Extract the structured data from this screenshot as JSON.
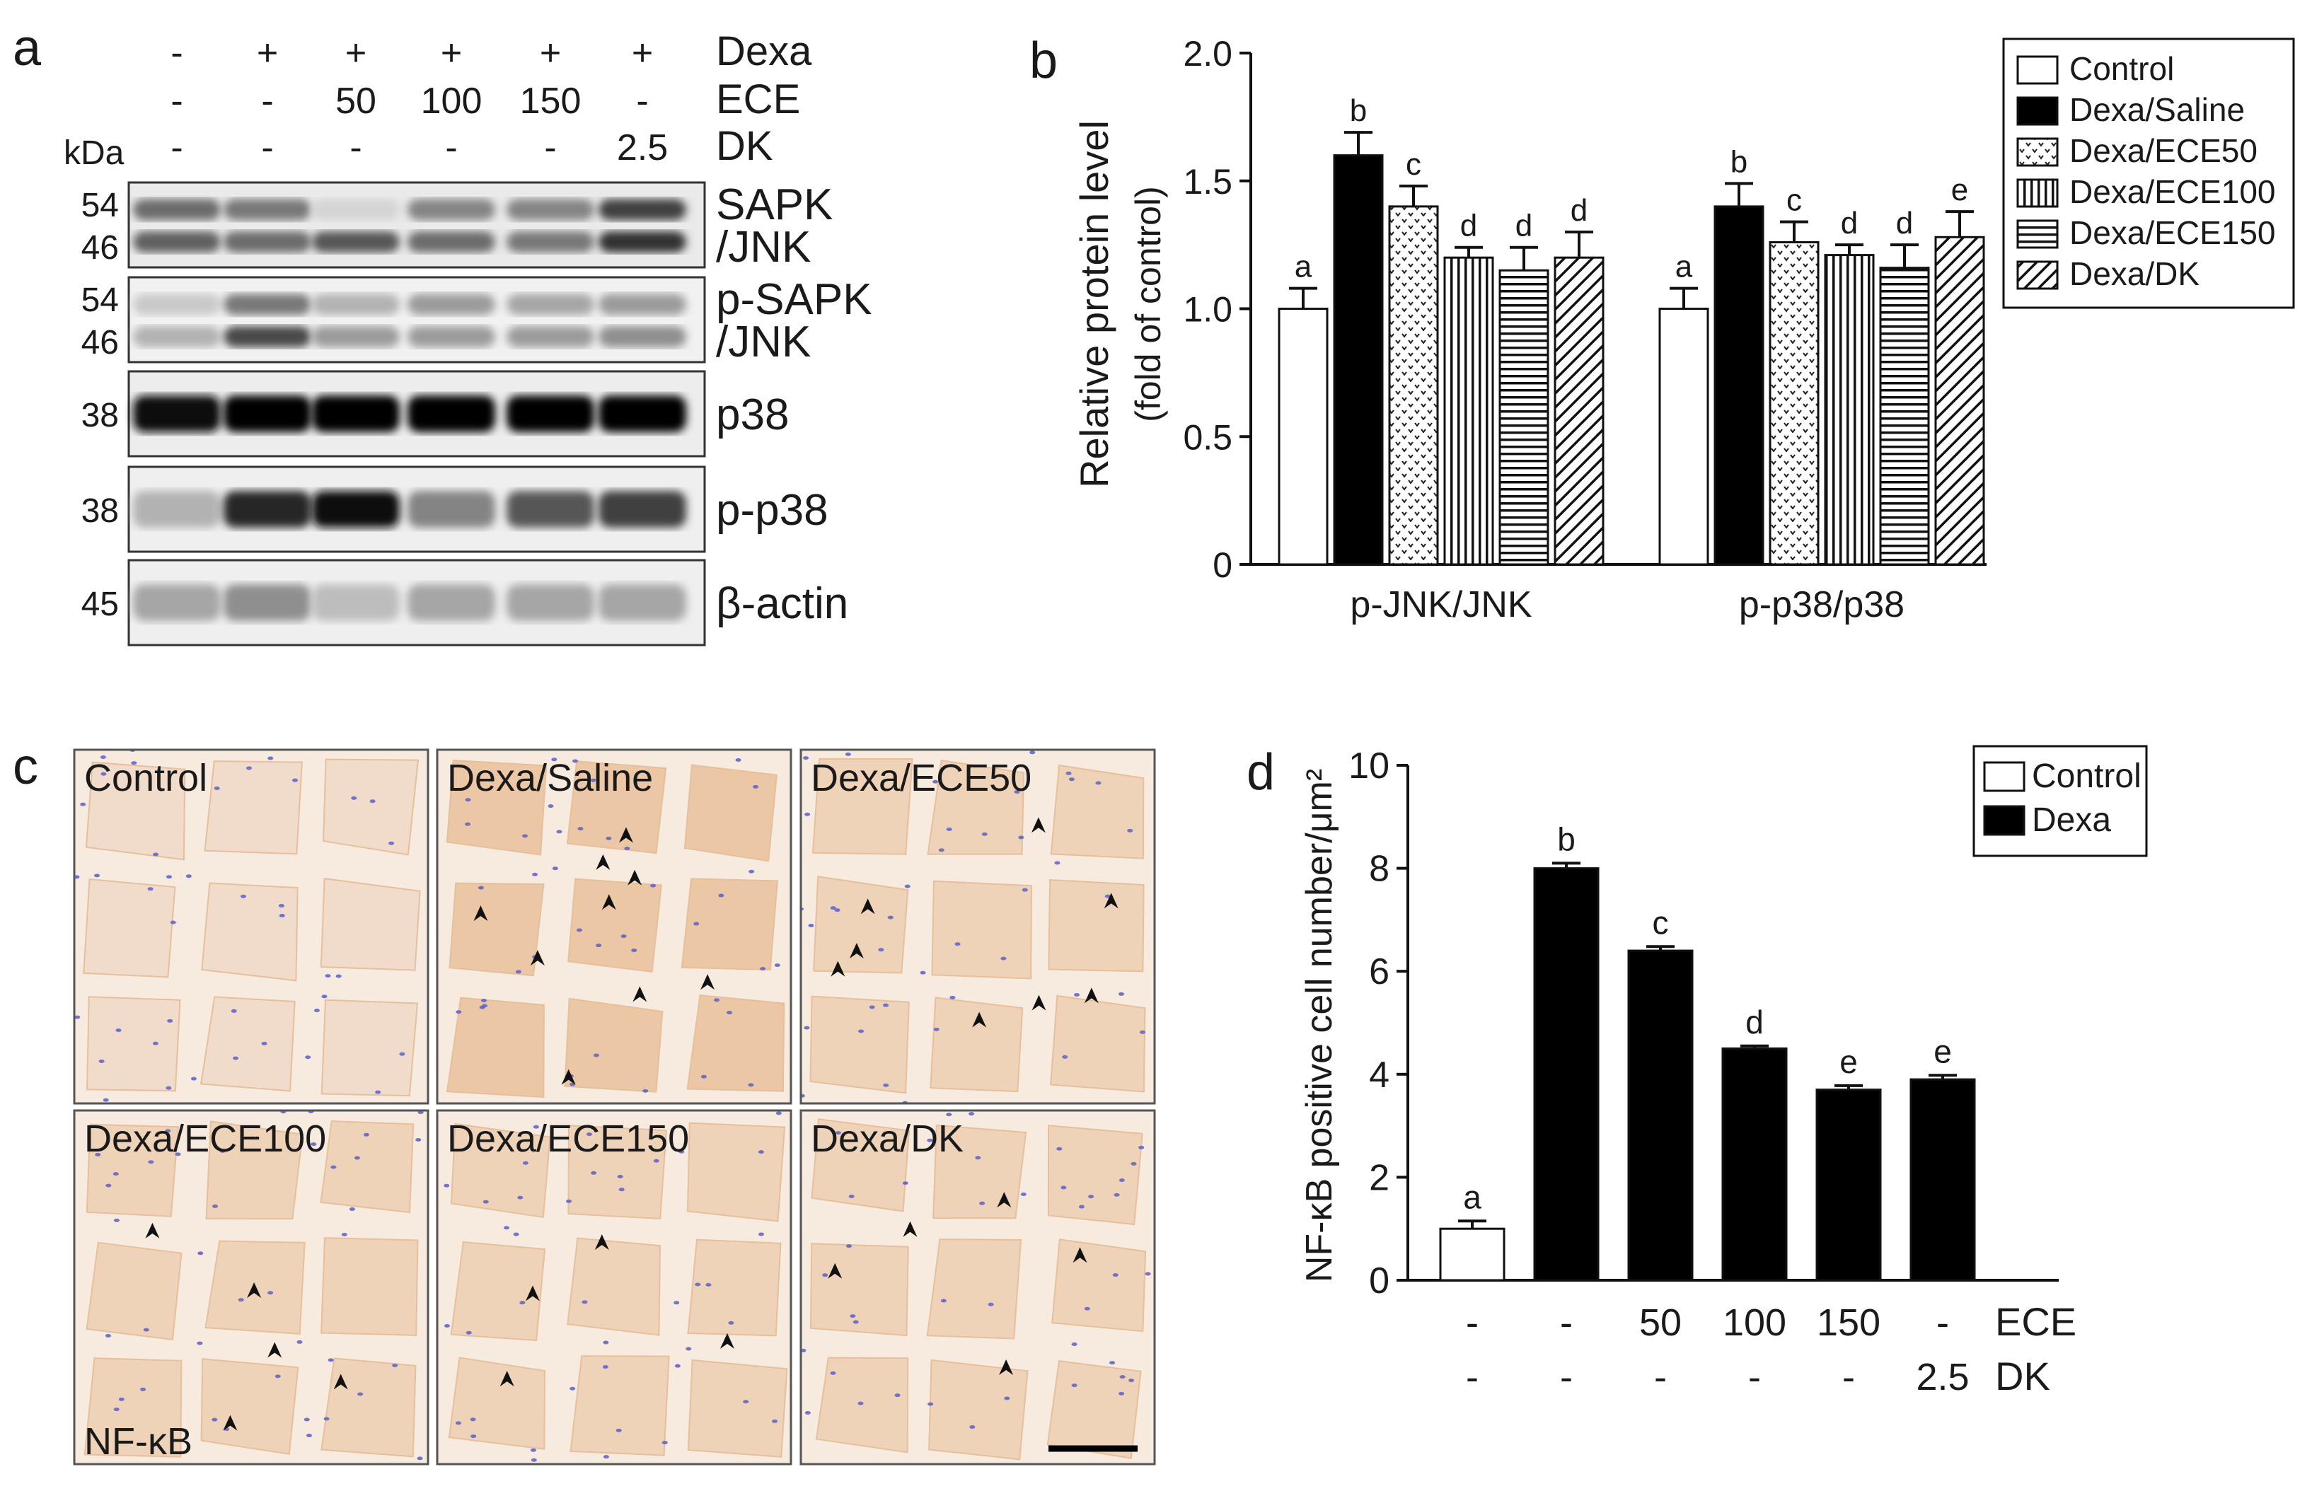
{
  "panels": {
    "a": "a",
    "b": "b",
    "c": "c",
    "d": "d"
  },
  "blot": {
    "kda_label": "kDa",
    "treatments": [
      {
        "name": "Dexa",
        "values": [
          "-",
          "+",
          "+",
          "+",
          "+",
          "+"
        ]
      },
      {
        "name": "ECE",
        "values": [
          "-",
          "-",
          "50",
          "100",
          "150",
          "-"
        ]
      },
      {
        "name": "DK",
        "values": [
          "-",
          "-",
          "-",
          "-",
          "-",
          "2.5"
        ]
      }
    ],
    "strips": [
      {
        "label_lines": [
          "SAPK",
          "/JNK"
        ],
        "mw": [
          "54",
          "46"
        ],
        "bands": [
          [
            0.55,
            0.5,
            0.1,
            0.45,
            0.45,
            0.75
          ],
          [
            0.6,
            0.55,
            0.65,
            0.55,
            0.5,
            0.8
          ]
        ],
        "bg": 0.18
      },
      {
        "label_lines": [
          "p-SAPK",
          "/JNK"
        ],
        "mw": [
          "54",
          "46"
        ],
        "bands": [
          [
            0.15,
            0.5,
            0.25,
            0.35,
            0.3,
            0.35
          ],
          [
            0.25,
            0.7,
            0.35,
            0.35,
            0.35,
            0.4
          ]
        ],
        "bg": 0.1
      },
      {
        "label_lines": [
          "p38"
        ],
        "mw": [
          "38"
        ],
        "bands": [
          [
            0.95,
            1.0,
            1.0,
            1.0,
            1.0,
            1.0
          ]
        ],
        "bg": 0.15
      },
      {
        "label_lines": [
          "p-p38"
        ],
        "mw": [
          "38"
        ],
        "bands": [
          [
            0.25,
            0.85,
            0.95,
            0.45,
            0.65,
            0.75
          ]
        ],
        "bg": 0.12
      },
      {
        "label_lines": [
          "β-actin"
        ],
        "mw": [
          "45"
        ],
        "bands": [
          [
            0.3,
            0.4,
            0.2,
            0.3,
            0.3,
            0.3
          ]
        ],
        "bg": 0.12
      }
    ]
  },
  "chart_b": {
    "type": "bar",
    "ylabel_lines": [
      "Relative protein level",
      "(fold of control)"
    ],
    "ylim": [
      0,
      2.0
    ],
    "yticks": [
      "0",
      "0.5",
      "1.0",
      "1.5",
      "2.0"
    ],
    "groups": [
      "p-JNK/JNK",
      "p-p38/p38"
    ],
    "series": [
      {
        "name": "Control",
        "fill": "white",
        "values": [
          1.0,
          1.0
        ],
        "errors": [
          0.08,
          0.08
        ],
        "letters": [
          "a",
          "a"
        ]
      },
      {
        "name": "Dexa/Saline",
        "fill": "black",
        "values": [
          1.6,
          1.4
        ],
        "errors": [
          0.09,
          0.09
        ],
        "letters": [
          "b",
          "b"
        ]
      },
      {
        "name": "Dexa/ECE50",
        "fill": "dots",
        "values": [
          1.4,
          1.26
        ],
        "errors": [
          0.08,
          0.08
        ],
        "letters": [
          "c",
          "c"
        ]
      },
      {
        "name": "Dexa/ECE100",
        "fill": "vertical",
        "values": [
          1.2,
          1.21
        ],
        "errors": [
          0.04,
          0.04
        ],
        "letters": [
          "d",
          "d"
        ]
      },
      {
        "name": "Dexa/ECE150",
        "fill": "horizontal",
        "values": [
          1.15,
          1.16
        ],
        "errors": [
          0.09,
          0.09
        ],
        "letters": [
          "d",
          "d"
        ]
      },
      {
        "name": "Dexa/DK",
        "fill": "diagonal",
        "values": [
          1.2,
          1.28
        ],
        "errors": [
          0.1,
          0.1
        ],
        "letters": [
          "d",
          "e"
        ]
      }
    ],
    "legend_placement": "top-right"
  },
  "histology": {
    "labels": [
      "Control",
      "Dexa/Saline",
      "Dexa/ECE50",
      "Dexa/ECE100",
      "Dexa/ECE150",
      "Dexa/DK"
    ],
    "stain_label": "NF-κB",
    "colors": {
      "background": "#f6e9dc",
      "tissue": "#f0d2b8",
      "nuclei": "#5a5fc8",
      "arrow": "#111111"
    }
  },
  "chart_d": {
    "type": "bar",
    "ylabel": "NF-κB positive cell number/μm²",
    "ylim": [
      0,
      10
    ],
    "yticks": [
      "0",
      "2",
      "4",
      "6",
      "8",
      "10"
    ],
    "row_labels": [
      "ECE",
      "DK"
    ],
    "bars": [
      {
        "fill": "white",
        "value": 1.0,
        "error": 0.15,
        "letter": "a",
        "ece": "-",
        "dk": "-"
      },
      {
        "fill": "black",
        "value": 8.0,
        "error": 0.1,
        "letter": "b",
        "ece": "-",
        "dk": "-"
      },
      {
        "fill": "black",
        "value": 6.4,
        "error": 0.08,
        "letter": "c",
        "ece": "50",
        "dk": "-"
      },
      {
        "fill": "black",
        "value": 4.5,
        "error": 0.05,
        "letter": "d",
        "ece": "100",
        "dk": "-"
      },
      {
        "fill": "black",
        "value": 3.7,
        "error": 0.08,
        "letter": "e",
        "ece": "150",
        "dk": "-"
      },
      {
        "fill": "black",
        "value": 3.9,
        "error": 0.08,
        "letter": "e",
        "ece": "-",
        "dk": "2.5"
      }
    ],
    "legend": [
      {
        "name": "Control",
        "fill": "white"
      },
      {
        "name": "Dexa",
        "fill": "black"
      }
    ],
    "legend_placement": "top-right"
  },
  "chart_data": [
    {
      "type": "bar",
      "categories": [
        "p-JNK/JNK",
        "p-p38/p38"
      ],
      "series": [
        {
          "name": "Control",
          "values": [
            1.0,
            1.0
          ]
        },
        {
          "name": "Dexa/Saline",
          "values": [
            1.6,
            1.4
          ]
        },
        {
          "name": "Dexa/ECE50",
          "values": [
            1.4,
            1.26
          ]
        },
        {
          "name": "Dexa/ECE100",
          "values": [
            1.2,
            1.21
          ]
        },
        {
          "name": "Dexa/ECE150",
          "values": [
            1.15,
            1.16
          ]
        },
        {
          "name": "Dexa/DK",
          "values": [
            1.2,
            1.28
          ]
        }
      ],
      "ylabel": "Relative protein level (fold of control)",
      "ylim": [
        0,
        2.0
      ],
      "legend": "top-right"
    },
    {
      "type": "bar",
      "categories": [
        "Control",
        "Dexa",
        "Dexa/ECE50",
        "Dexa/ECE100",
        "Dexa/ECE150",
        "Dexa/DK2.5"
      ],
      "series": [
        {
          "name": "Control",
          "values": [
            1.0,
            null,
            null,
            null,
            null,
            null
          ]
        },
        {
          "name": "Dexa",
          "values": [
            null,
            8.0,
            6.4,
            4.5,
            3.7,
            3.9
          ]
        }
      ],
      "ylabel": "NF-κB positive cell number/μm²",
      "ylim": [
        0,
        10
      ],
      "legend": "top-right"
    }
  ]
}
